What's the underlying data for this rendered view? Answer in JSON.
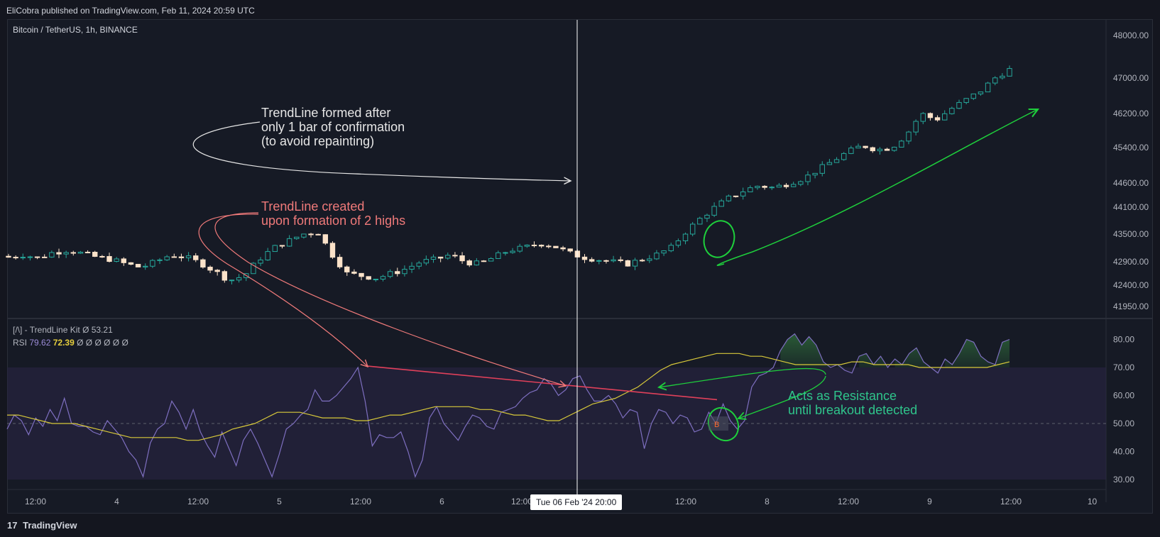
{
  "header": {
    "publisher_line": "EliCobra published on TradingView.com, Feb 11, 2024 20:59 UTC"
  },
  "symbol": {
    "title": "Bitcoin / TetherUS, 1h, BINANCE"
  },
  "indicator": {
    "name": "[/\\] - TrendLine Kit",
    "name_value": "Ø  53.21",
    "rsi_label": "RSI",
    "rsi_value": "79.62",
    "rsi_ma_value": "72.39",
    "rsi_extra": "Ø  Ø  Ø  Ø  Ø  Ø"
  },
  "annotations": {
    "white": "TrendLine formed after\nonly 1 bar of confirmation\n(to avoid repainting)",
    "red": "TrendLine created\nupon formation of 2 highs",
    "green": "Acts as Resistance\nuntil breakout detected"
  },
  "crosshair": {
    "label": "Tue 06 Feb '24   20:00"
  },
  "footer": {
    "logo": "17",
    "brand": "TradingView"
  },
  "colors": {
    "background": "#161a25",
    "candle_up": "#26a69a",
    "candle_down": "#fbe2c9",
    "rsi_line": "#7e6fc0",
    "rsi_ma": "#d8c93a",
    "trendline": "#e0405a",
    "annotation_white": "#e6e6e6",
    "annotation_red": "#f07a7a",
    "annotation_green": "#1ecf3c"
  },
  "chart_data": [
    {
      "type": "candlestick",
      "title": "Bitcoin / TetherUS, 1h, BINANCE",
      "ylim": [
        41800,
        48300
      ],
      "y_ticks": [
        {
          "value": 48000,
          "label": "48000.00"
        },
        {
          "value": 47000,
          "label": "47000.00"
        },
        {
          "value": 46200,
          "label": "46200.00"
        },
        {
          "value": 45400,
          "label": "45400.00"
        },
        {
          "value": 44600,
          "label": "44600.00"
        },
        {
          "value": 44100,
          "label": "44100.00"
        },
        {
          "value": 43500,
          "label": "43500.00"
        },
        {
          "value": 42900,
          "label": "42900.00"
        },
        {
          "value": 42400,
          "label": "42400.00"
        },
        {
          "value": 41950,
          "label": "41950.00"
        }
      ],
      "x_ticks": [
        "12:00",
        "4",
        "12:00",
        "5",
        "12:00",
        "6",
        "12:00",
        "12:00",
        "8",
        "12:00",
        "9",
        "12:00",
        "10"
      ],
      "close_path": [
        43000,
        43050,
        42980,
        43100,
        43150,
        43080,
        43000,
        42950,
        42850,
        42780,
        42900,
        43050,
        43000,
        42880,
        42700,
        42500,
        42600,
        42950,
        43200,
        43350,
        43500,
        43550,
        43050,
        42650,
        42600,
        42550,
        42650,
        42750,
        42900,
        42950,
        43050,
        42900,
        42850,
        43000,
        43150,
        43200,
        43300,
        43250,
        43100,
        43000,
        42950,
        42900,
        42850,
        42950,
        43050,
        43200,
        43550,
        43850,
        44100,
        44300,
        44450,
        44550,
        44500,
        44600,
        44700,
        44900,
        45100,
        45300,
        45450,
        45350,
        45400,
        45700,
        46200,
        46050,
        46300,
        46500,
        46700,
        47000,
        47200
      ],
      "candle_count": 140,
      "start_value": 43020,
      "end_value": 47200
    },
    {
      "type": "line",
      "title": "RSI",
      "ylim": [
        28,
        85
      ],
      "y_ticks": [
        {
          "value": 80,
          "label": "80.00"
        },
        {
          "value": 70,
          "label": "70.00"
        },
        {
          "value": 60,
          "label": "60.00"
        },
        {
          "value": 50,
          "label": "50.00"
        },
        {
          "value": 40,
          "label": "40.00"
        },
        {
          "value": 30,
          "label": "30.00"
        }
      ],
      "overbought": 70,
      "oversold": 30,
      "midline": 50,
      "rsi_points": [
        48,
        53,
        51,
        46,
        52,
        49,
        55,
        51,
        59,
        50,
        49,
        49,
        47,
        46,
        51,
        48,
        45,
        40,
        37,
        31,
        43,
        48,
        50,
        58,
        54,
        48,
        55,
        47,
        42,
        38,
        47,
        41,
        35,
        44,
        48,
        43,
        37,
        31,
        39,
        48,
        50,
        53,
        55,
        62,
        58,
        58,
        60,
        63,
        66,
        70,
        58,
        42,
        46,
        45,
        45,
        47,
        40,
        31,
        37,
        52,
        56,
        50,
        47,
        44,
        49,
        53,
        52,
        49,
        48,
        54,
        55,
        56,
        59,
        61,
        62,
        66,
        64,
        60,
        62,
        66,
        67,
        62,
        58,
        58,
        60,
        57,
        52,
        55,
        54,
        41,
        50,
        55,
        54,
        50,
        53,
        52,
        47,
        48,
        54,
        50,
        57,
        51,
        48,
        51,
        63,
        67,
        68,
        70,
        76,
        80,
        82,
        78,
        81,
        78,
        72,
        70,
        71,
        69,
        68,
        74,
        75,
        71,
        74,
        70,
        73,
        71,
        75,
        77,
        72,
        70,
        68,
        73,
        71,
        75,
        80,
        79,
        74,
        72,
        71,
        79,
        80
      ],
      "rsi_ma_points": [
        53,
        53,
        52,
        51,
        50,
        50,
        50,
        49,
        48,
        47,
        46,
        45,
        45,
        45,
        45,
        45,
        44,
        44,
        45,
        46,
        48,
        49,
        50,
        52,
        54,
        54,
        54,
        53,
        52,
        52,
        52,
        51,
        51,
        52,
        53,
        53,
        54,
        55,
        56,
        56,
        56,
        56,
        55,
        55,
        54,
        53,
        53,
        52,
        51,
        51,
        53,
        55,
        57,
        58,
        59,
        61,
        63,
        66,
        69,
        71,
        72,
        73,
        74,
        75,
        75,
        75,
        74,
        74,
        73,
        72,
        71,
        71,
        71,
        71,
        71,
        72,
        72,
        71,
        71,
        71,
        71,
        70,
        70,
        70,
        70,
        70,
        70,
        70,
        71,
        72
      ],
      "trendline": {
        "from_value": 70.5,
        "to_value": 58.5
      },
      "marker_label": "B",
      "series": [
        {
          "name": "RSI",
          "value": 79.62
        },
        {
          "name": "RSI MA",
          "value": 72.39
        }
      ]
    }
  ]
}
